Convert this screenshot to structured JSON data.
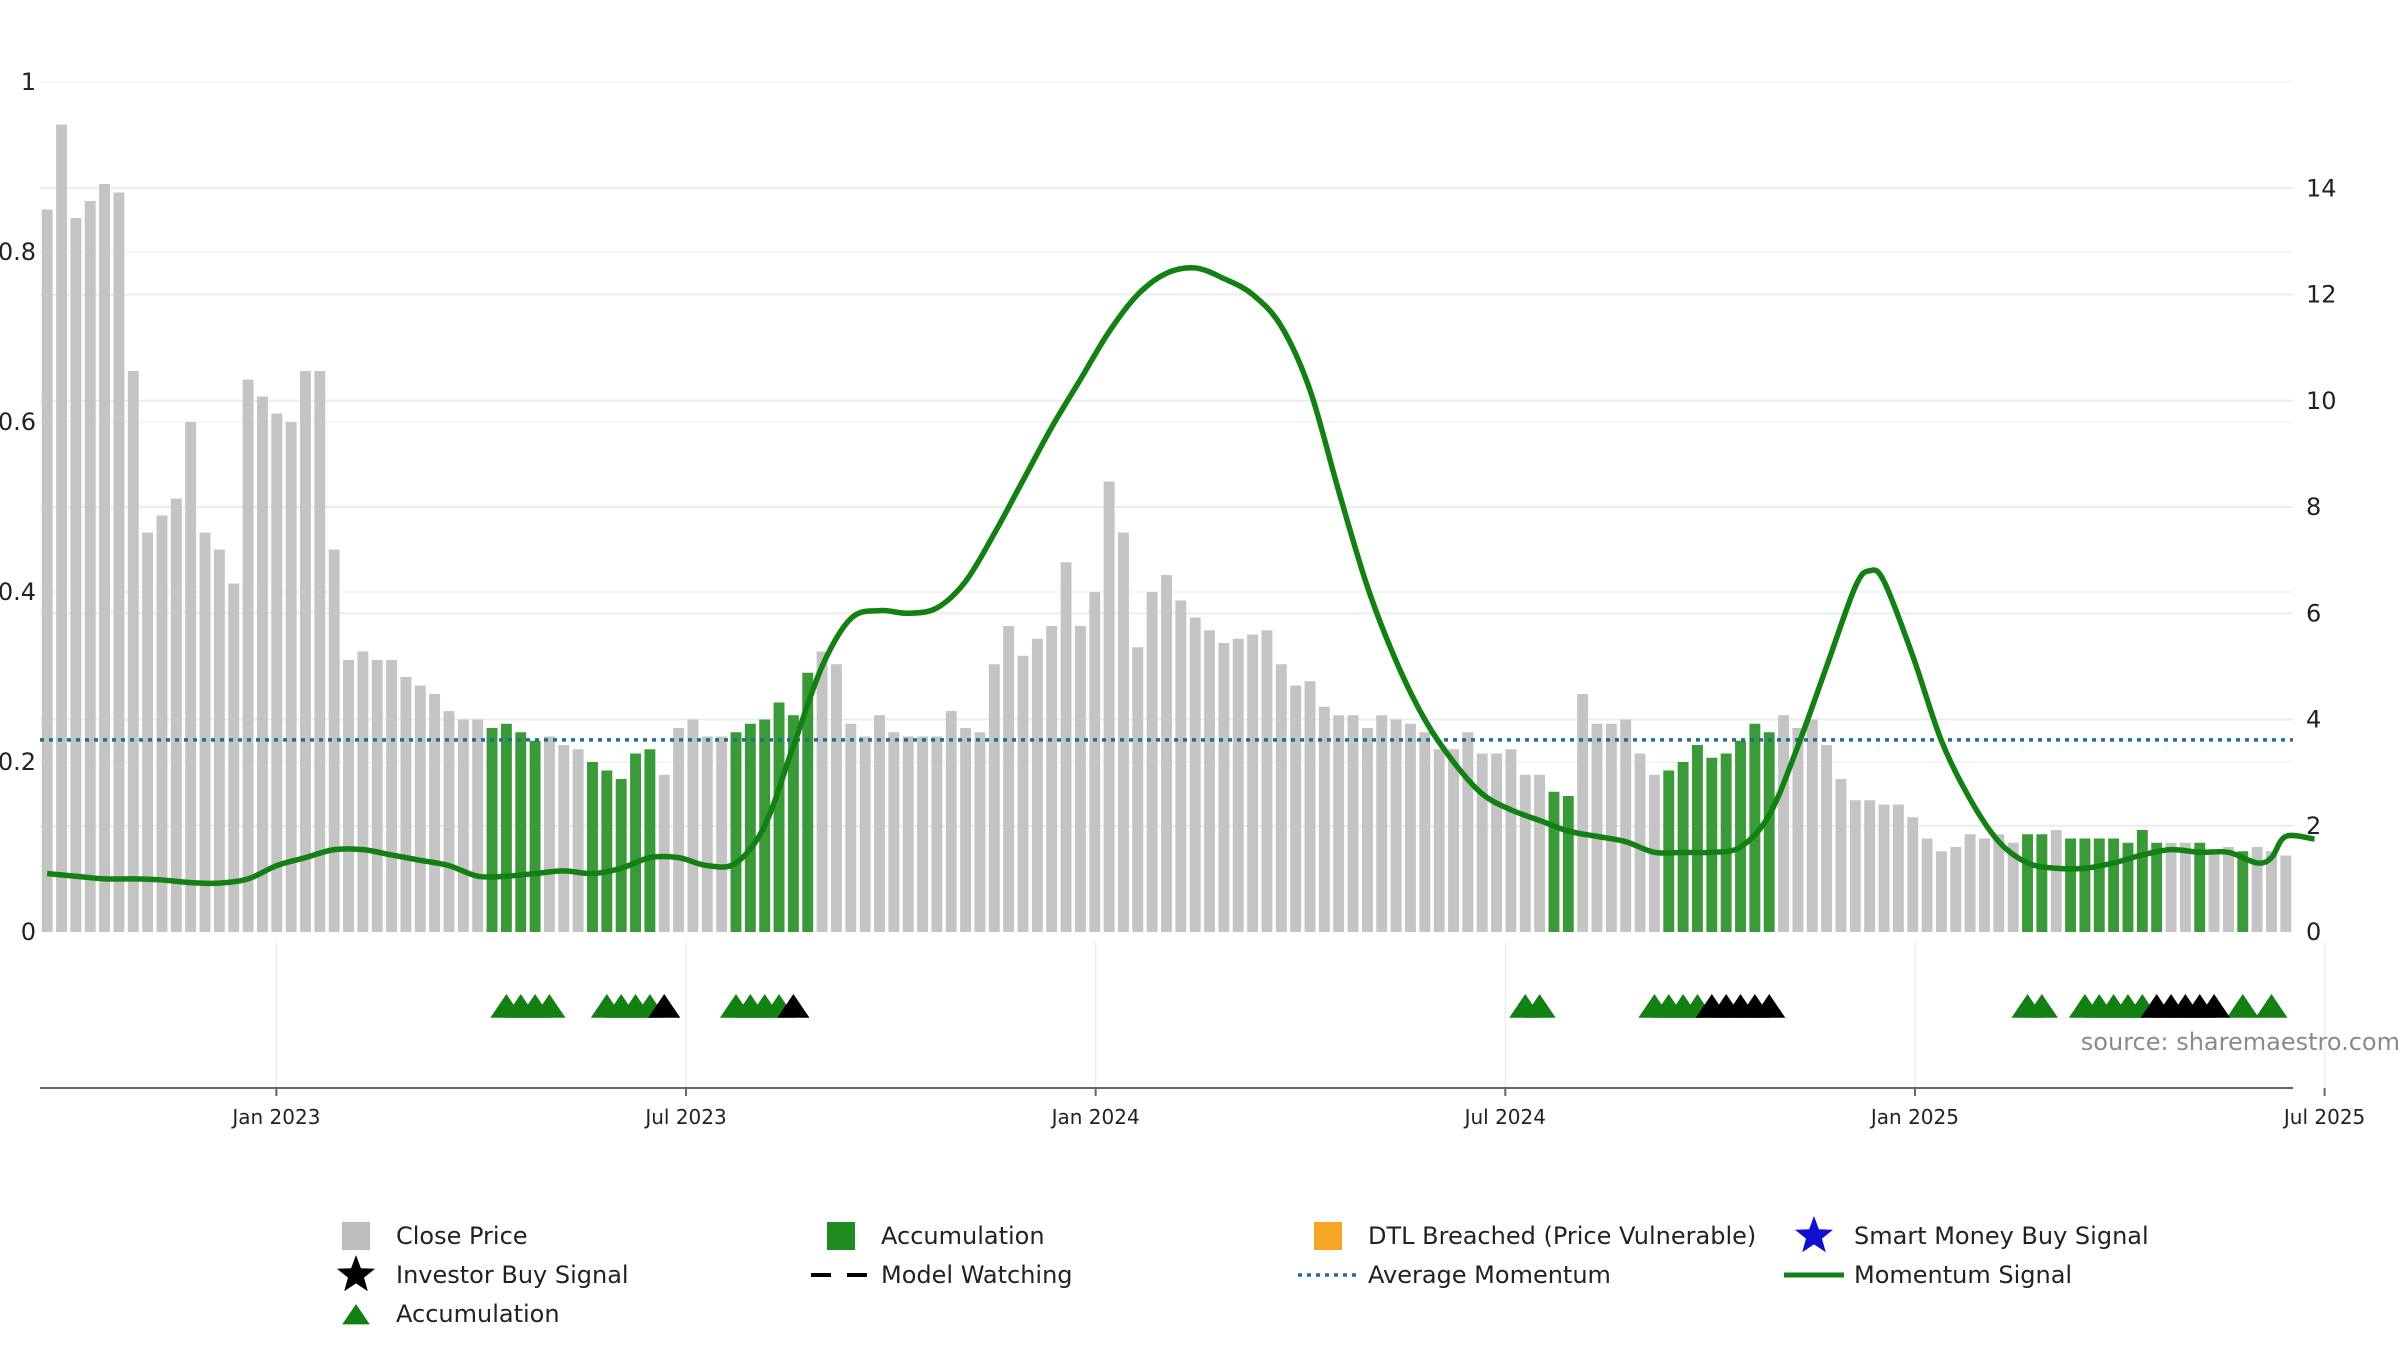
{
  "chart_data": {
    "type": "bar",
    "x_start_month": "2022-10",
    "left_axis": {
      "ylim": [
        0,
        1
      ],
      "ticks": [
        "0",
        "0.2",
        "0.4",
        "0.6",
        "0.8",
        "1"
      ]
    },
    "right_axis": {
      "ylim": [
        0,
        16
      ],
      "ticks": [
        "0",
        "2",
        "4",
        "6",
        "8",
        "10",
        "12",
        "14"
      ]
    },
    "x_ticks": [
      "Jan 2023",
      "Jul 2023",
      "Jan 2024",
      "Jul 2024",
      "Jan 2025",
      "Jul 2025"
    ],
    "average_momentum": 0.226,
    "colors": {
      "close_price": "#c4c4c4",
      "accumulation": "#3a9a3a",
      "momentum": "#138013",
      "average": "#1f6f8b",
      "investor_signal": "#000000",
      "accumulation_marker": "#138013",
      "dtl": "#f5a623",
      "smart_money": "#1010d0"
    },
    "close_price": [
      0.85,
      0.95,
      0.84,
      0.86,
      0.88,
      0.87,
      0.66,
      0.47,
      0.49,
      0.51,
      0.6,
      0.47,
      0.45,
      0.41,
      0.65,
      0.63,
      0.61,
      0.6,
      0.66,
      0.66,
      0.45,
      0.32,
      0.33,
      0.32,
      0.32,
      0.3,
      0.29,
      0.28,
      0.26,
      0.25,
      0.25,
      0.24,
      0.245,
      0.235,
      0.225,
      0.23,
      0.22,
      0.215,
      0.2,
      0.19,
      0.18,
      0.21,
      0.215,
      0.185,
      0.24,
      0.25,
      0.23,
      0.23,
      0.235,
      0.245,
      0.25,
      0.27,
      0.255,
      0.305,
      0.33,
      0.315,
      0.245,
      0.23,
      0.255,
      0.235,
      0.23,
      0.23,
      0.23,
      0.26,
      0.24,
      0.235,
      0.315,
      0.36,
      0.325,
      0.345,
      0.36,
      0.435,
      0.36,
      0.4,
      0.53,
      0.47,
      0.335,
      0.4,
      0.42,
      0.39,
      0.37,
      0.355,
      0.34,
      0.345,
      0.35,
      0.355,
      0.315,
      0.29,
      0.295,
      0.265,
      0.255,
      0.255,
      0.24,
      0.255,
      0.25,
      0.245,
      0.235,
      0.215,
      0.215,
      0.235,
      0.21,
      0.21,
      0.215,
      0.185,
      0.185,
      0.165,
      0.16,
      0.28,
      0.245,
      0.245,
      0.25,
      0.21,
      0.185,
      0.19,
      0.2,
      0.22,
      0.205,
      0.21,
      0.225,
      0.245,
      0.235,
      0.255,
      0.24,
      0.25,
      0.22,
      0.18,
      0.155,
      0.155,
      0.15,
      0.15,
      0.135,
      0.11,
      0.095,
      0.1,
      0.115,
      0.11,
      0.115,
      0.105,
      0.115,
      0.115,
      0.12,
      0.11,
      0.11,
      0.11,
      0.11,
      0.105,
      0.12,
      0.105,
      0.105,
      0.105,
      0.105,
      0.095,
      0.1,
      0.095,
      0.1,
      0.095,
      0.09
    ],
    "accumulation_bars": [
      31,
      32,
      33,
      34,
      38,
      39,
      40,
      41,
      42,
      48,
      49,
      50,
      51,
      52,
      53,
      105,
      106,
      113,
      114,
      115,
      116,
      117,
      118,
      119,
      120,
      138,
      139,
      141,
      142,
      143,
      144,
      145,
      146,
      147,
      150,
      153
    ],
    "momentum_signal": [
      [
        0,
        1.1
      ],
      [
        2,
        1.05
      ],
      [
        4,
        1.0
      ],
      [
        6,
        1.0
      ],
      [
        8,
        0.98
      ],
      [
        10,
        0.93
      ],
      [
        12,
        0.92
      ],
      [
        14,
        1.0
      ],
      [
        16,
        1.25
      ],
      [
        18,
        1.4
      ],
      [
        20,
        1.55
      ],
      [
        22,
        1.55
      ],
      [
        24,
        1.45
      ],
      [
        26,
        1.35
      ],
      [
        28,
        1.25
      ],
      [
        30,
        1.05
      ],
      [
        32,
        1.05
      ],
      [
        34,
        1.1
      ],
      [
        36,
        1.15
      ],
      [
        38,
        1.1
      ],
      [
        40,
        1.2
      ],
      [
        42,
        1.4
      ],
      [
        44,
        1.4
      ],
      [
        46,
        1.25
      ],
      [
        48,
        1.3
      ],
      [
        50,
        2.0
      ],
      [
        52,
        3.5
      ],
      [
        54,
        5.0
      ],
      [
        56,
        5.9
      ],
      [
        58,
        6.05
      ],
      [
        60,
        6.0
      ],
      [
        62,
        6.1
      ],
      [
        64,
        6.6
      ],
      [
        66,
        7.5
      ],
      [
        68,
        8.5
      ],
      [
        70,
        9.5
      ],
      [
        72,
        10.4
      ],
      [
        74,
        11.3
      ],
      [
        76,
        12.0
      ],
      [
        78,
        12.4
      ],
      [
        80,
        12.5
      ],
      [
        82,
        12.3
      ],
      [
        84,
        12.0
      ],
      [
        86,
        11.4
      ],
      [
        88,
        10.2
      ],
      [
        90,
        8.3
      ],
      [
        92,
        6.5
      ],
      [
        94,
        5.1
      ],
      [
        96,
        4.0
      ],
      [
        98,
        3.2
      ],
      [
        100,
        2.6
      ],
      [
        102,
        2.3
      ],
      [
        104,
        2.1
      ],
      [
        106,
        1.9
      ],
      [
        108,
        1.8
      ],
      [
        110,
        1.7
      ],
      [
        112,
        1.5
      ],
      [
        114,
        1.5
      ],
      [
        116,
        1.5
      ],
      [
        118,
        1.6
      ],
      [
        120,
        2.2
      ],
      [
        122,
        3.5
      ],
      [
        124,
        5.0
      ],
      [
        126,
        6.5
      ],
      [
        127,
        6.8
      ],
      [
        128,
        6.6
      ],
      [
        130,
        5.2
      ],
      [
        132,
        3.6
      ],
      [
        134,
        2.5
      ],
      [
        136,
        1.7
      ],
      [
        138,
        1.3
      ],
      [
        140,
        1.2
      ],
      [
        142,
        1.2
      ],
      [
        144,
        1.3
      ],
      [
        146,
        1.45
      ],
      [
        148,
        1.55
      ],
      [
        150,
        1.5
      ],
      [
        152,
        1.5
      ],
      [
        154,
        1.3
      ],
      [
        155,
        1.4
      ],
      [
        156,
        1.8
      ],
      [
        158,
        1.75
      ]
    ],
    "accumulation_markers": [
      32,
      33,
      34,
      35,
      39,
      40,
      41,
      42,
      48,
      49,
      50,
      51,
      103,
      104,
      112,
      113,
      114,
      115,
      138,
      139,
      142,
      143,
      144,
      145,
      146,
      153,
      155
    ],
    "investor_markers": [
      43,
      52,
      116,
      117,
      118,
      119,
      120,
      147,
      148,
      149,
      150,
      151
    ],
    "source": "source: sharemaestro.com",
    "legend": [
      {
        "label": "Close Price",
        "kind": "square",
        "color": "#bdbdbd"
      },
      {
        "label": "Accumulation",
        "kind": "square",
        "color": "#1f8a1f"
      },
      {
        "label": "DTL Breached (Price Vulnerable)",
        "kind": "square",
        "color": "#f5a623"
      },
      {
        "label": "Smart Money Buy Signal",
        "kind": "star",
        "color": "#1010d0"
      },
      {
        "label": "Investor Buy Signal",
        "kind": "star",
        "color": "#000000"
      },
      {
        "label": "Model Watching",
        "kind": "dash",
        "color": "#000000"
      },
      {
        "label": "Average Momentum",
        "kind": "dots",
        "color": "#1f6f8b"
      },
      {
        "label": "Momentum Signal",
        "kind": "line",
        "color": "#138013"
      },
      {
        "label": "Accumulation",
        "kind": "triangle",
        "color": "#138013"
      }
    ]
  }
}
